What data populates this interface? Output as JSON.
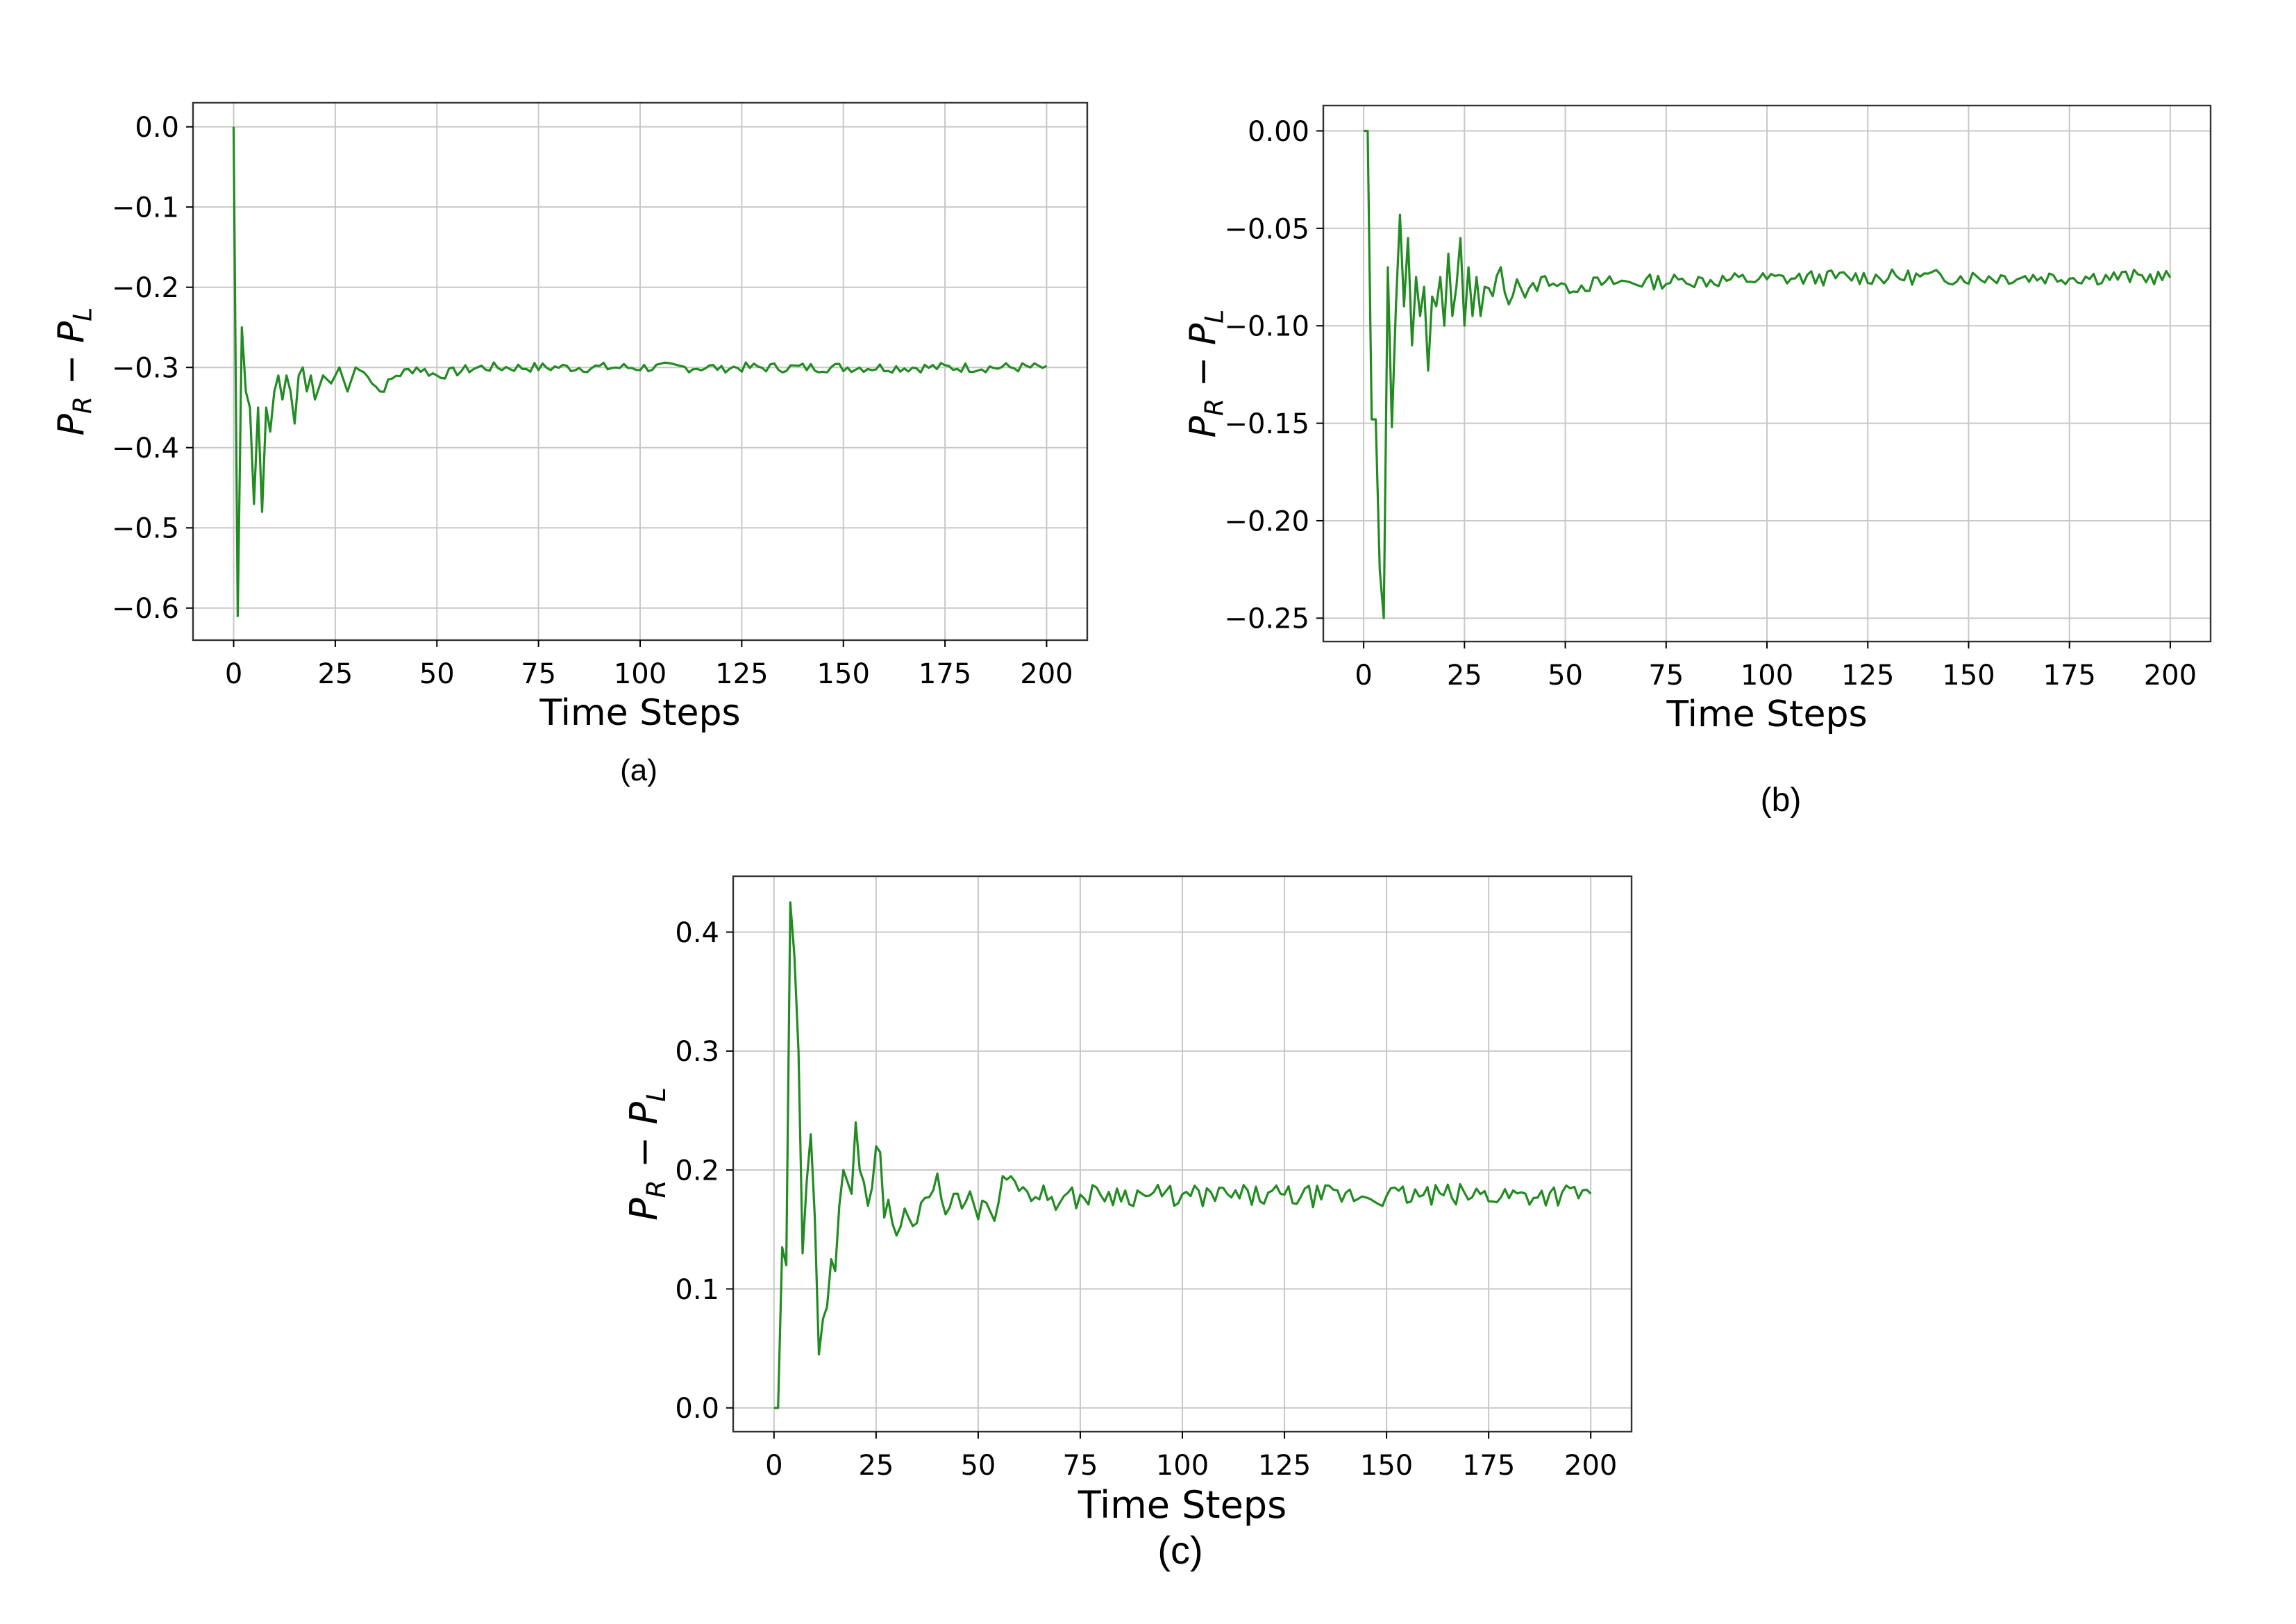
{
  "figure": {
    "caption_a": "(a)",
    "caption_b": "(b)",
    "caption_c": "(c)"
  },
  "chart_data": [
    {
      "id": "a",
      "type": "line",
      "xlabel": "Time Steps",
      "ylabel_main": "P",
      "ylabel_sub1": "R",
      "ylabel_minus": " − ",
      "ylabel_sub2": "L",
      "xlim": [
        -10,
        210
      ],
      "ylim": [
        -0.64,
        0.03
      ],
      "xticks": [
        0,
        25,
        50,
        75,
        100,
        125,
        150,
        175,
        200
      ],
      "xtick_labels": [
        "0",
        "25",
        "50",
        "75",
        "100",
        "125",
        "150",
        "175",
        "200"
      ],
      "yticks": [
        0.0,
        -0.1,
        -0.2,
        -0.3,
        -0.4,
        -0.5,
        -0.6
      ],
      "ytick_labels": [
        "0.0",
        "−0.1",
        "−0.2",
        "−0.3",
        "−0.4",
        "−0.5",
        "−0.6"
      ],
      "grid": true,
      "line_color": "#228b22",
      "series_keypoints": [
        [
          0,
          0.0
        ],
        [
          1,
          -0.61
        ],
        [
          2,
          -0.25
        ],
        [
          3,
          -0.33
        ],
        [
          4,
          -0.35
        ],
        [
          5,
          -0.47
        ],
        [
          6,
          -0.35
        ],
        [
          7,
          -0.48
        ],
        [
          8,
          -0.35
        ],
        [
          9,
          -0.38
        ],
        [
          10,
          -0.33
        ],
        [
          11,
          -0.31
        ],
        [
          12,
          -0.34
        ],
        [
          13,
          -0.31
        ],
        [
          14,
          -0.33
        ],
        [
          15,
          -0.37
        ],
        [
          16,
          -0.31
        ],
        [
          17,
          -0.3
        ],
        [
          18,
          -0.33
        ],
        [
          19,
          -0.31
        ],
        [
          20,
          -0.34
        ],
        [
          22,
          -0.31
        ],
        [
          24,
          -0.32
        ],
        [
          26,
          -0.3
        ],
        [
          28,
          -0.33
        ],
        [
          30,
          -0.3
        ],
        [
          33,
          -0.31
        ],
        [
          36,
          -0.33
        ],
        [
          40,
          -0.31
        ],
        [
          45,
          -0.3
        ],
        [
          50,
          -0.31
        ],
        [
          60,
          -0.3
        ],
        [
          80,
          -0.3
        ],
        [
          120,
          -0.3
        ],
        [
          200,
          -0.3
        ]
      ],
      "series_noise": 0.004
    },
    {
      "id": "b",
      "type": "line",
      "xlabel": "Time Steps",
      "ylabel_main": "P",
      "ylabel_sub1": "R",
      "ylabel_minus": " − ",
      "ylabel_sub2": "L",
      "xlim": [
        -10,
        210
      ],
      "ylim": [
        -0.262,
        0.013
      ],
      "xticks": [
        0,
        25,
        50,
        75,
        100,
        125,
        150,
        175,
        200
      ],
      "xtick_labels": [
        "0",
        "25",
        "50",
        "75",
        "100",
        "125",
        "150",
        "175",
        "200"
      ],
      "yticks": [
        0.0,
        -0.05,
        -0.1,
        -0.15,
        -0.2,
        -0.25
      ],
      "ytick_labels": [
        "0.00",
        "−0.05",
        "−0.10",
        "−0.15",
        "−0.20",
        "−0.25"
      ],
      "grid": true,
      "line_color": "#228b22",
      "series_keypoints": [
        [
          0,
          0.0
        ],
        [
          1,
          0.0
        ],
        [
          2,
          -0.148
        ],
        [
          3,
          -0.148
        ],
        [
          4,
          -0.225
        ],
        [
          5,
          -0.25
        ],
        [
          6,
          -0.07
        ],
        [
          7,
          -0.152
        ],
        [
          8,
          -0.09
        ],
        [
          9,
          -0.043
        ],
        [
          10,
          -0.09
        ],
        [
          11,
          -0.055
        ],
        [
          12,
          -0.11
        ],
        [
          13,
          -0.075
        ],
        [
          14,
          -0.095
        ],
        [
          15,
          -0.08
        ],
        [
          16,
          -0.123
        ],
        [
          17,
          -0.085
        ],
        [
          18,
          -0.09
        ],
        [
          19,
          -0.075
        ],
        [
          20,
          -0.1
        ],
        [
          21,
          -0.063
        ],
        [
          22,
          -0.095
        ],
        [
          23,
          -0.08
        ],
        [
          24,
          -0.055
        ],
        [
          25,
          -0.1
        ],
        [
          26,
          -0.07
        ],
        [
          27,
          -0.095
        ],
        [
          28,
          -0.075
        ],
        [
          29,
          -0.095
        ],
        [
          30,
          -0.08
        ],
        [
          32,
          -0.085
        ],
        [
          34,
          -0.07
        ],
        [
          36,
          -0.09
        ],
        [
          38,
          -0.075
        ],
        [
          40,
          -0.085
        ],
        [
          45,
          -0.075
        ],
        [
          50,
          -0.08
        ],
        [
          60,
          -0.078
        ],
        [
          80,
          -0.077
        ],
        [
          120,
          -0.075
        ],
        [
          200,
          -0.075
        ]
      ],
      "series_noise": 0.0025
    },
    {
      "id": "c",
      "type": "line",
      "xlabel": "Time Steps",
      "ylabel_main": "P",
      "ylabel_sub1": "R",
      "ylabel_minus": " − ",
      "ylabel_sub2": "L",
      "xlim": [
        -10,
        210
      ],
      "ylim": [
        -0.02,
        0.447
      ],
      "xticks": [
        0,
        25,
        50,
        75,
        100,
        125,
        150,
        175,
        200
      ],
      "xtick_labels": [
        "0",
        "25",
        "50",
        "75",
        "100",
        "125",
        "150",
        "175",
        "200"
      ],
      "yticks": [
        0.0,
        0.1,
        0.2,
        0.3,
        0.4
      ],
      "ytick_labels": [
        "0.0",
        "0.1",
        "0.2",
        "0.3",
        "0.4"
      ],
      "grid": true,
      "line_color": "#228b22",
      "series_keypoints": [
        [
          0,
          0.0
        ],
        [
          1,
          0.0
        ],
        [
          2,
          0.135
        ],
        [
          3,
          0.12
        ],
        [
          4,
          0.425
        ],
        [
          5,
          0.38
        ],
        [
          6,
          0.3
        ],
        [
          7,
          0.13
        ],
        [
          8,
          0.19
        ],
        [
          9,
          0.23
        ],
        [
          10,
          0.16
        ],
        [
          11,
          0.045
        ],
        [
          12,
          0.075
        ],
        [
          13,
          0.085
        ],
        [
          14,
          0.125
        ],
        [
          15,
          0.115
        ],
        [
          16,
          0.17
        ],
        [
          17,
          0.2
        ],
        [
          18,
          0.19
        ],
        [
          19,
          0.18
        ],
        [
          20,
          0.24
        ],
        [
          21,
          0.2
        ],
        [
          22,
          0.19
        ],
        [
          23,
          0.17
        ],
        [
          24,
          0.185
        ],
        [
          25,
          0.22
        ],
        [
          26,
          0.215
        ],
        [
          27,
          0.16
        ],
        [
          28,
          0.175
        ],
        [
          29,
          0.155
        ],
        [
          30,
          0.145
        ],
        [
          32,
          0.165
        ],
        [
          34,
          0.15
        ],
        [
          36,
          0.17
        ],
        [
          38,
          0.175
        ],
        [
          40,
          0.2
        ],
        [
          42,
          0.165
        ],
        [
          44,
          0.18
        ],
        [
          46,
          0.165
        ],
        [
          48,
          0.185
        ],
        [
          50,
          0.16
        ],
        [
          52,
          0.175
        ],
        [
          54,
          0.155
        ],
        [
          56,
          0.195
        ],
        [
          60,
          0.185
        ],
        [
          70,
          0.175
        ],
        [
          80,
          0.18
        ],
        [
          100,
          0.178
        ],
        [
          150,
          0.178
        ],
        [
          200,
          0.18
        ]
      ],
      "series_noise": 0.006
    }
  ]
}
